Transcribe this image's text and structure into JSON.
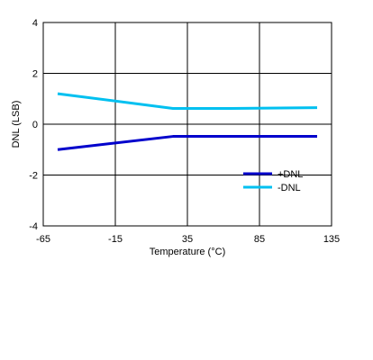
{
  "chart_data": {
    "type": "line",
    "xlabel": "Temperature (°C)",
    "ylabel": "DNL (LSB)",
    "xlim": [
      -65,
      135
    ],
    "ylim": [
      -4,
      4
    ],
    "xticks": [
      "-65",
      "-15",
      "35",
      "85",
      "135"
    ],
    "yticks": [
      "4",
      "2",
      "0",
      "-2",
      "-4"
    ],
    "grid": true,
    "legend_position": "bottom-right",
    "series": [
      {
        "name": "+DNL",
        "color": "#0000cc",
        "x": [
          -55,
          25,
          125
        ],
        "y": [
          -1.0,
          -0.48,
          -0.48
        ]
      },
      {
        "name": "-DNL",
        "color": "#00c0f0",
        "x": [
          -55,
          25,
          65,
          125
        ],
        "y": [
          1.2,
          0.62,
          0.62,
          0.65
        ]
      }
    ]
  }
}
